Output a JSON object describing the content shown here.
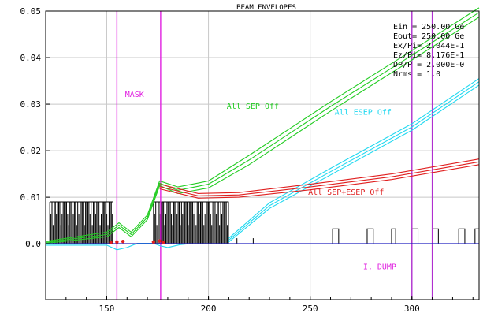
{
  "chart_data": {
    "type": "line",
    "title": "BEAM ENVELOPES",
    "xlim": [
      120,
      333
    ],
    "ylim": [
      -0.012,
      0.05
    ],
    "x_ticks": [
      {
        "value": 150,
        "label": "150"
      },
      {
        "value": 200,
        "label": "200"
      },
      {
        "value": 250,
        "label": "250"
      },
      {
        "value": 300,
        "label": "300"
      }
    ],
    "y_ticks": [
      {
        "value": 0.0,
        "label": "0.0"
      },
      {
        "value": 0.01,
        "label": "0.01"
      },
      {
        "value": 0.02,
        "label": "0.02"
      },
      {
        "value": 0.03,
        "label": "0.03"
      },
      {
        "value": 0.04,
        "label": "0.04"
      },
      {
        "value": 0.05,
        "label": "0.05"
      }
    ],
    "grid": true,
    "params": [
      "Ein  =  250.00 Ge",
      "Eout=  250.00 Ge",
      "Ex/Pi=  2.044E-1",
      "Ez/Pi=  8.176E-1",
      "DP/P =  2.000E-0",
      "Nrms = 1.0"
    ],
    "annotations": [
      {
        "text": "MASK",
        "x": 159,
        "y": 0.0315,
        "color": "#e020e0"
      },
      {
        "text": "All SEP Off",
        "x": 209,
        "y": 0.029,
        "color": "#22cc22"
      },
      {
        "text": "All ESEP Off",
        "x": 262,
        "y": 0.0277,
        "color": "#20d8f0"
      },
      {
        "text": "All SEP+ESEP Off",
        "x": 249,
        "y": 0.0105,
        "color": "#e02020"
      },
      {
        "text": "I. DUMP",
        "x": 276,
        "y": -0.0055,
        "color": "#e020e0"
      }
    ],
    "vertical_markers": [
      {
        "x": 155,
        "color": "#e020e0"
      },
      {
        "x": 176.5,
        "color": "#e020e0"
      },
      {
        "x": 300,
        "color": "#b030d0"
      },
      {
        "x": 310,
        "color": "#b030d0"
      }
    ],
    "series": [
      {
        "name": "All SEP Off",
        "color": "#22cc22",
        "lines": [
          [
            [
              120,
              0.0005
            ],
            [
              150,
              0.0025
            ],
            [
              156,
              0.0045
            ],
            [
              162,
              0.0025
            ],
            [
              170,
              0.0062
            ],
            [
              176,
              0.0135
            ],
            [
              185,
              0.0122
            ],
            [
              200,
              0.0135
            ],
            [
              220,
              0.019
            ],
            [
              260,
              0.0305
            ],
            [
              300,
              0.0415
            ],
            [
              333,
              0.0507
            ]
          ],
          [
            [
              120,
              0.0003
            ],
            [
              150,
              0.002
            ],
            [
              156,
              0.004
            ],
            [
              162,
              0.002
            ],
            [
              170,
              0.0057
            ],
            [
              176,
              0.013
            ],
            [
              185,
              0.0115
            ],
            [
              200,
              0.0128
            ],
            [
              220,
              0.018
            ],
            [
              260,
              0.0295
            ],
            [
              300,
              0.0405
            ],
            [
              333,
              0.0497
            ]
          ],
          [
            [
              120,
              0.0001
            ],
            [
              150,
              0.0015
            ],
            [
              156,
              0.0035
            ],
            [
              162,
              0.0015
            ],
            [
              170,
              0.0052
            ],
            [
              176,
              0.0125
            ],
            [
              185,
              0.0108
            ],
            [
              200,
              0.012
            ],
            [
              220,
              0.017
            ],
            [
              260,
              0.0285
            ],
            [
              300,
              0.0395
            ],
            [
              333,
              0.0487
            ]
          ]
        ]
      },
      {
        "name": "All ESEP Off",
        "color": "#20d8f0",
        "lines": [
          [
            [
              210,
              0.0012
            ],
            [
              230,
              0.0088
            ],
            [
              260,
              0.0162
            ],
            [
              300,
              0.0258
            ],
            [
              333,
              0.0355
            ]
          ],
          [
            [
              210,
              0.0008
            ],
            [
              230,
              0.0082
            ],
            [
              260,
              0.0155
            ],
            [
              300,
              0.0251
            ],
            [
              333,
              0.0348
            ]
          ],
          [
            [
              210,
              0.0004
            ],
            [
              230,
              0.0076
            ],
            [
              260,
              0.0148
            ],
            [
              300,
              0.0244
            ],
            [
              333,
              0.0341
            ]
          ]
        ]
      },
      {
        "name": "All SEP+ESEP Off",
        "color": "#e02020",
        "lines": [
          [
            [
              176,
              0.0128
            ],
            [
              195,
              0.0108
            ],
            [
              215,
              0.011
            ],
            [
              250,
              0.0128
            ],
            [
              290,
              0.015
            ],
            [
              333,
              0.0182
            ]
          ],
          [
            [
              176,
              0.0123
            ],
            [
              195,
              0.0103
            ],
            [
              215,
              0.0105
            ],
            [
              250,
              0.0122
            ],
            [
              290,
              0.0144
            ],
            [
              333,
              0.0176
            ]
          ],
          [
            [
              176,
              0.0118
            ],
            [
              195,
              0.0098
            ],
            [
              215,
              0.01
            ],
            [
              250,
              0.0116
            ],
            [
              290,
              0.0138
            ],
            [
              333,
              0.017
            ]
          ]
        ]
      },
      {
        "name": "baseline",
        "color": "#20d8f0",
        "lines": [
          [
            [
              120,
              -0.0003
            ],
            [
              150,
              -0.0003
            ],
            [
              155,
              -0.0013
            ],
            [
              160,
              -0.0008
            ],
            [
              165,
              0.0001
            ],
            [
              173,
              0.0001
            ],
            [
              176,
              -0.0004
            ],
            [
              180,
              -0.0008
            ],
            [
              186,
              -0.0002
            ],
            [
              190,
              0.0
            ]
          ]
        ]
      },
      {
        "name": "axis",
        "color": "#2020c0",
        "lines": [
          [
            [
              120,
              0.0
            ],
            [
              333,
              0.0
            ]
          ]
        ]
      }
    ],
    "apertures": {
      "color": "#000000",
      "height": 0.009,
      "dense_ranges": [
        [
          122,
          153
        ],
        [
          173,
          210
        ]
      ],
      "small_elements": [
        [
          261,
          264
        ],
        [
          278,
          281
        ],
        [
          290,
          292
        ],
        [
          300,
          303
        ],
        [
          310,
          313
        ],
        [
          323,
          326
        ],
        [
          331,
          333
        ]
      ]
    }
  }
}
